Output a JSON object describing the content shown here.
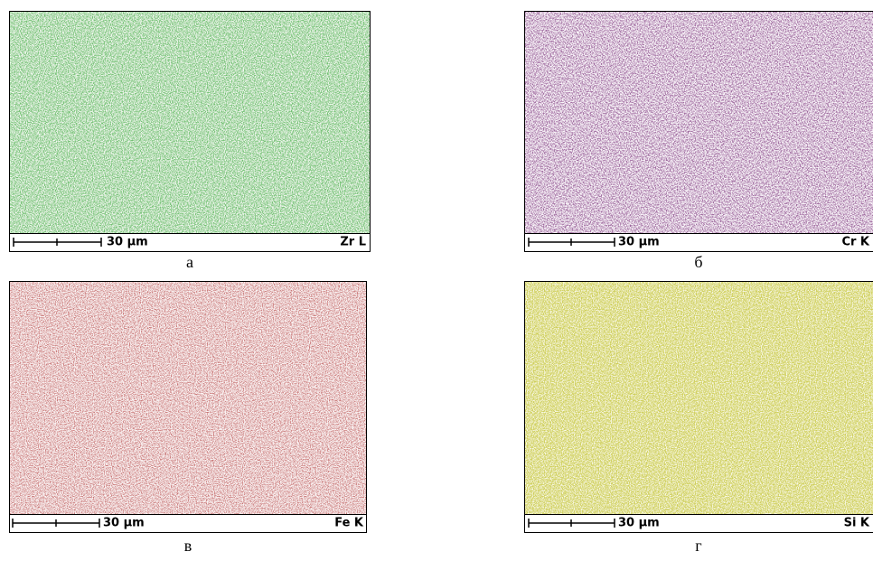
{
  "panels": [
    {
      "scale": "30 µm",
      "element": "Zr L",
      "caption": "а"
    },
    {
      "scale": "30 µm",
      "element": "Cr K",
      "caption": "б"
    },
    {
      "scale": "30 µm",
      "element": "Fe K",
      "caption": "в"
    },
    {
      "scale": "30 µm",
      "element": "Si K",
      "caption": "г"
    }
  ]
}
